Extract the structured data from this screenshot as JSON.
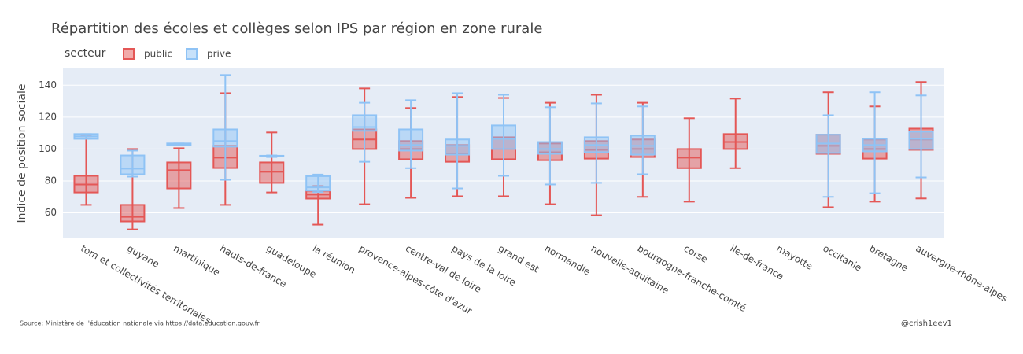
{
  "chart_data": {
    "type": "box",
    "title": "Répartition des écoles et collèges selon IPS par région en zone rurale",
    "y_label": "Indice de position sociale",
    "legend_title": "secteur",
    "source": "Source: Ministère de l'éducation nationale via https://data.education.gouv.fr",
    "credit": "@crish1eev1",
    "categories": [
      "tom et collectivités territoriales",
      "guyane",
      "martinique",
      "hauts-de-france",
      "guadeloupe",
      "la réunion",
      "provence-alpes-côte d'azur",
      "centre-val de loire",
      "pays de la loire",
      "grand est",
      "normandie",
      "nouvelle-aquitaine",
      "bourgogne-franche-comté",
      "corse",
      "ile-de-france",
      "mayotte",
      "occitanie",
      "bretagne",
      "auvergne-rhône-alpes"
    ],
    "ylim": [
      44,
      151
    ],
    "yticks": [
      60,
      80,
      100,
      120,
      140
    ],
    "grid": true,
    "series": [
      {
        "name": "public",
        "color": "#e45756",
        "min": [
          65,
          49.6,
          63,
          65,
          72.8,
          52.6,
          65.4,
          69.4,
          70.4,
          70.4,
          65.4,
          58.5,
          70,
          67,
          88,
          null,
          63.5,
          67,
          69
        ],
        "q1": [
          72.8,
          54.6,
          75.3,
          88.1,
          78.8,
          68.9,
          100,
          93.6,
          92,
          93.6,
          93,
          94,
          95,
          88,
          100,
          null,
          97,
          94,
          99.5
        ],
        "median": [
          77.8,
          57.5,
          86.7,
          94.6,
          85.7,
          71.4,
          106,
          100,
          97,
          100,
          98,
          99.5,
          100,
          94.6,
          104.4,
          null,
          102,
          100,
          106
        ],
        "q3": [
          83.2,
          65,
          91.6,
          102,
          91.6,
          73.8,
          112.3,
          105,
          102.5,
          107.4,
          103.5,
          105,
          106,
          100,
          109.4,
          null,
          109,
          106,
          112.8
        ],
        "max": [
          108,
          100,
          100.5,
          135,
          110.4,
          76.8,
          138,
          125.7,
          132.6,
          132,
          129,
          134,
          129,
          119.3,
          131.6,
          null,
          135.6,
          126.7,
          142
        ]
      },
      {
        "name": "prive",
        "color": "#8fc3f5",
        "min": [
          106.4,
          82.7,
          102.5,
          80.7,
          95,
          73,
          92,
          88,
          75.3,
          83.2,
          77.8,
          78.8,
          84.2,
          null,
          null,
          null,
          70,
          72.3,
          82.2
        ],
        "q1": [
          106.4,
          84.2,
          102.5,
          101.5,
          95.5,
          74,
          111.4,
          99,
          96.5,
          100,
          97,
          98,
          96.5,
          null,
          null,
          null,
          97.5,
          98.5,
          100
        ],
        "median": [
          107.9,
          87.7,
          103,
          105,
          95.6,
          76,
          113.8,
          102.5,
          102,
          106.4,
          100,
          102.5,
          102,
          null,
          null,
          null,
          103.5,
          102.5,
          106.4
        ],
        "q3": [
          109.4,
          96,
          103.5,
          112.3,
          95.8,
          83,
          121.2,
          112.3,
          106,
          114.8,
          104.4,
          107.4,
          108.4,
          null,
          null,
          null,
          109,
          106.4,
          110.9
        ],
        "max": [
          109.4,
          99,
          103.5,
          146.4,
          96,
          84,
          129,
          130.6,
          135,
          134,
          126.2,
          128.6,
          126.7,
          null,
          null,
          null,
          121.2,
          135.6,
          133.6
        ]
      }
    ]
  }
}
